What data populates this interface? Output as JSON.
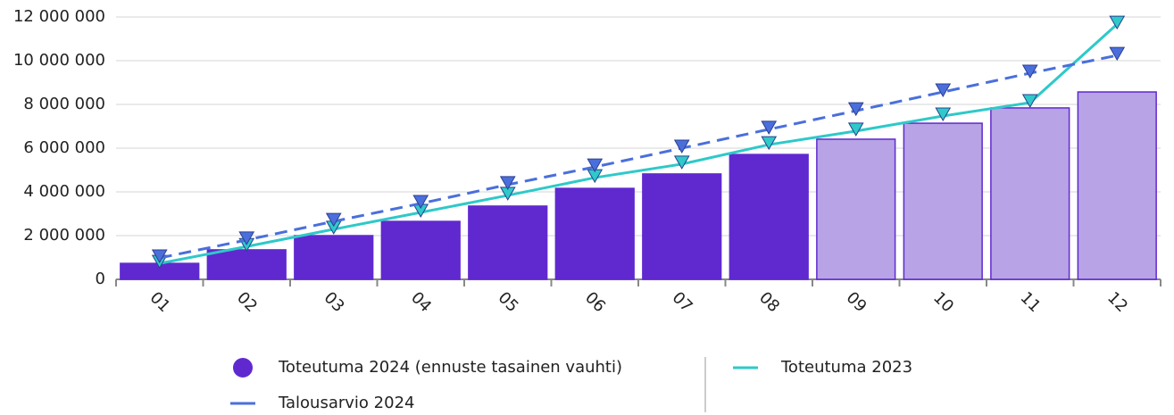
{
  "chart_data": {
    "type": "bar",
    "categories": [
      "01",
      "02",
      "03",
      "04",
      "05",
      "06",
      "07",
      "08",
      "09",
      "10",
      "11",
      "12"
    ],
    "ylim": [
      0,
      12000000
    ],
    "yticks": [
      0,
      {
        "value": 2000000,
        "label": "2 000 000"
      },
      {
        "value": 4000000,
        "label": "4 000 000"
      },
      {
        "value": 6000000,
        "label": "6 000 000"
      },
      {
        "value": 8000000,
        "label": "8 000 000"
      },
      {
        "value": 10000000,
        "label": "10 000 000"
      },
      {
        "value": 12000000,
        "label": "12 000 000"
      }
    ],
    "grid": true,
    "series": [
      {
        "name": "Toteutuma 2024 (ennuste tasainen vauhti)",
        "type": "bar",
        "color": "#6029cf",
        "colors": [
          "#6029cf",
          "#6029cf",
          "#6029cf",
          "#6029cf",
          "#6029cf",
          "#6029cf",
          "#6029cf",
          "#6029cf",
          "#b7a3e6",
          "#b7a3e6",
          "#b7a3e6",
          "#b7a3e6"
        ],
        "values": [
          730000,
          1350000,
          2000000,
          2650000,
          3350000,
          4160000,
          4820000,
          5710000,
          6410000,
          7140000,
          7840000,
          8570000
        ]
      },
      {
        "name": "Toteutuma 2023",
        "type": "line",
        "color": "#2ec9c9",
        "values": [
          730000,
          1500000,
          2290000,
          3060000,
          3840000,
          4650000,
          5270000,
          6160000,
          6780000,
          7470000,
          8080000,
          11670000
        ]
      },
      {
        "name": "Talousarvio 2024",
        "type": "line",
        "dashed": true,
        "color": "#4a6fdc",
        "values": [
          980000,
          1800000,
          2650000,
          3470000,
          4330000,
          5140000,
          6000000,
          6860000,
          7710000,
          8570000,
          9430000,
          10240000
        ]
      }
    ]
  }
}
